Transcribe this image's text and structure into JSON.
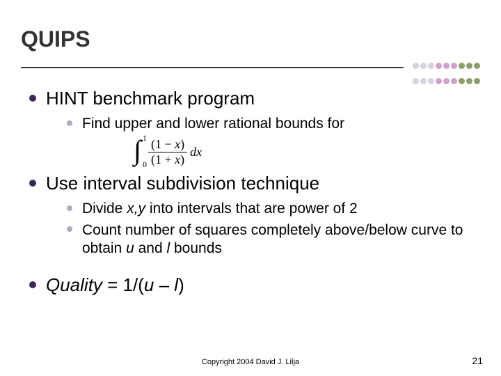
{
  "slide": {
    "title": "QUIPS",
    "title_color": "#333333",
    "title_fontsize": 32,
    "rule_color": "#333333",
    "background_color": "#ffffff",
    "dots": {
      "row1_colors": [
        "#d6d2de",
        "#d6d2de",
        "#d6d2de",
        "#cfa1cc",
        "#cfa1cc",
        "#cfa1cc",
        "#8b9e6b",
        "#8b9e6b",
        "#8b9e6b"
      ],
      "row2_colors": [
        "#d6d2de",
        "#d6d2de",
        "#d6d2de",
        "#cfa1cc",
        "#cfa1cc",
        "#cfa1cc",
        "#8b9e6b",
        "#8b9e6b",
        "#8b9e6b"
      ],
      "diameter": 9,
      "row_gap": 4
    },
    "bullets": {
      "l1_color": "#3b2a57",
      "l2_color": "#b2aac0",
      "l1_fontsize": 26,
      "l2_fontsize": 21
    },
    "items": [
      {
        "level": 1,
        "text": "HINT benchmark program"
      },
      {
        "level": 2,
        "text": "Find upper and lower rational bounds for"
      },
      {
        "level": "equation"
      },
      {
        "level": 1,
        "text": "Use interval subdivision technique"
      },
      {
        "level": 2,
        "text_html": "Divide <i>x,y</i> into intervals that are power of 2"
      },
      {
        "level": 2,
        "text_html": "Count number of squares completely above/below curve to obtain <i>u</i> and <i>l</i> bounds"
      },
      {
        "level": "spacer"
      },
      {
        "level": 1,
        "text_html": "<i>Quality</i> = 1/(<i>u</i> – <i>l</i>)"
      }
    ],
    "equation": {
      "lower_limit": "0",
      "upper_limit": "1",
      "numerator_html": "(1 − <i>x</i>)",
      "denominator_html": "(1 + <i>x</i>)",
      "differential_html": "<i>dx</i>",
      "font_family": "serif"
    },
    "footer": {
      "copyright": "Copyright 2004 David J. Lilja",
      "page_number": "21",
      "copy_fontsize": 11,
      "page_fontsize": 14
    }
  }
}
